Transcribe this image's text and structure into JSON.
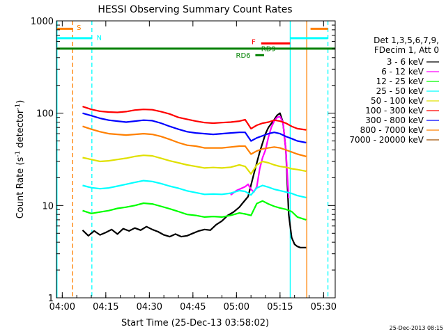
{
  "chart_data": {
    "type": "line",
    "title": "HESSI Observing Summary Count Rates",
    "xlabel": "Start Time (25-Dec-13 03:58:02)",
    "ylabel_main": "Count Rate (s",
    "ylabel_exp1": "-1",
    "ylabel_mid": " detector",
    "ylabel_exp2": "-1",
    "ylabel_end": ")",
    "x_unit": "minutes after 03:58:02",
    "xlim": [
      0,
      96
    ],
    "ylim": [
      1,
      1000
    ],
    "yscale": "log",
    "x_ticks": [
      {
        "label": "04:00",
        "x": 2
      },
      {
        "label": "04:15",
        "x": 17
      },
      {
        "label": "04:30",
        "x": 32
      },
      {
        "label": "04:45",
        "x": 47
      },
      {
        "label": "05:00",
        "x": 62
      },
      {
        "label": "05:15",
        "x": 77
      },
      {
        "label": "05:30",
        "x": 92
      }
    ],
    "y_ticks": [
      {
        "label": "1",
        "y": 1
      },
      {
        "label": "10",
        "y": 10
      },
      {
        "label": "100",
        "y": 100
      },
      {
        "label": "1000",
        "y": 1000
      }
    ],
    "legend_header": [
      "Det 1,3,5,6,7,9,",
      "FDecim 1, Att 0"
    ],
    "series": [
      {
        "name": "3 - 6 keV",
        "color": "#000000",
        "x": [
          9,
          11,
          13,
          15,
          17,
          19,
          21,
          23,
          25,
          27,
          29,
          31,
          33,
          35,
          37,
          39,
          41,
          43,
          45,
          47,
          49,
          51,
          53,
          55,
          57,
          59,
          61,
          63,
          64,
          66,
          68,
          70,
          72,
          73,
          75,
          76,
          77,
          78,
          79,
          80,
          81,
          82,
          83,
          84,
          86
        ],
        "y": [
          5.4,
          4.7,
          5.3,
          4.8,
          5.1,
          5.5,
          4.9,
          5.6,
          5.3,
          5.7,
          5.4,
          5.9,
          5.5,
          5.2,
          4.8,
          4.6,
          4.9,
          4.6,
          4.7,
          5.0,
          5.3,
          5.5,
          5.4,
          6.2,
          6.8,
          7.8,
          8.5,
          9.6,
          10.5,
          12.5,
          22,
          38,
          60,
          70,
          85,
          95,
          100,
          80,
          40,
          8,
          4.5,
          3.8,
          3.6,
          3.5,
          3.5
        ]
      },
      {
        "name": "6 - 12 keV",
        "color": "#ff00ff",
        "x": [
          60,
          62,
          64,
          65,
          66,
          67,
          68,
          69,
          70,
          71,
          72,
          73,
          74,
          75,
          76,
          77,
          78,
          79,
          80
        ],
        "y": [
          13,
          14.5,
          15.5,
          16,
          17,
          15,
          14,
          16,
          25,
          33,
          40,
          55,
          70,
          82,
          90,
          92,
          80,
          40,
          12
        ]
      },
      {
        "name": "12 - 25 keV",
        "color": "#00ff00",
        "x": [
          9,
          12,
          15,
          18,
          21,
          24,
          27,
          30,
          33,
          36,
          39,
          42,
          45,
          48,
          51,
          54,
          57,
          60,
          63,
          65,
          67,
          69,
          71,
          73,
          75,
          77,
          79,
          81,
          83,
          86
        ],
        "y": [
          8.8,
          8.2,
          8.5,
          8.8,
          9.3,
          9.6,
          10.0,
          10.6,
          10.4,
          9.8,
          9.2,
          8.6,
          8.0,
          7.8,
          7.5,
          7.6,
          7.5,
          7.8,
          8.3,
          8.1,
          7.8,
          10.5,
          11.2,
          10.4,
          9.8,
          9.4,
          9.1,
          8.6,
          7.5,
          7.0
        ]
      },
      {
        "name": "25 - 50 keV",
        "color": "#00ffff",
        "x": [
          9,
          12,
          15,
          18,
          21,
          24,
          27,
          30,
          33,
          36,
          39,
          42,
          45,
          48,
          51,
          54,
          57,
          60,
          63,
          65,
          67,
          69,
          71,
          73,
          75,
          77,
          79,
          81,
          83,
          86
        ],
        "y": [
          16.5,
          15.6,
          15.2,
          15.5,
          16.2,
          17.0,
          17.8,
          18.6,
          18.2,
          17.3,
          16.2,
          15.4,
          14.4,
          13.8,
          13.2,
          13.3,
          13.2,
          13.6,
          14.5,
          14.2,
          13.0,
          15.5,
          16.5,
          15.8,
          15.0,
          14.5,
          14.0,
          13.5,
          12.8,
          12.2
        ]
      },
      {
        "name": "50 - 100 keV",
        "color": "#e0e000",
        "x": [
          9,
          12,
          15,
          18,
          21,
          24,
          27,
          30,
          33,
          36,
          39,
          42,
          45,
          48,
          51,
          54,
          57,
          60,
          63,
          65,
          67,
          69,
          71,
          73,
          75,
          77,
          79,
          81,
          83,
          86
        ],
        "y": [
          33,
          31.5,
          30,
          30.5,
          31.5,
          32.5,
          34,
          35,
          34.5,
          32.5,
          30.5,
          29,
          27.5,
          26.5,
          25.5,
          25.8,
          25.5,
          26,
          27.5,
          26.5,
          22,
          27.5,
          30,
          29,
          27.5,
          26.5,
          26,
          25,
          24.5,
          23.5
        ]
      },
      {
        "name": "100 - 300 keV",
        "color": "#ff0000",
        "x": [
          9,
          12,
          15,
          18,
          21,
          24,
          27,
          30,
          33,
          36,
          39,
          42,
          45,
          48,
          51,
          54,
          57,
          60,
          63,
          65,
          67,
          69,
          71,
          73,
          75,
          77,
          79,
          81,
          83,
          86
        ],
        "y": [
          118,
          110,
          105,
          103,
          102,
          104,
          108,
          110,
          109,
          104,
          98,
          90,
          86,
          82,
          79,
          78,
          79,
          80,
          82,
          85,
          68,
          74,
          78,
          80,
          84,
          82,
          78,
          72,
          68,
          66
        ]
      },
      {
        "name": "300 - 800 keV",
        "color": "#0000ff",
        "x": [
          9,
          12,
          15,
          18,
          21,
          24,
          27,
          30,
          33,
          36,
          39,
          42,
          45,
          48,
          51,
          54,
          57,
          60,
          63,
          65,
          67,
          69,
          71,
          73,
          75,
          77,
          79,
          81,
          83,
          86
        ],
        "y": [
          100,
          94,
          88,
          84,
          82,
          80,
          82,
          84,
          83,
          78,
          72,
          67,
          63,
          61,
          60,
          59,
          60,
          61,
          62,
          62,
          50,
          54,
          57,
          60,
          62,
          60,
          56,
          53,
          50,
          48
        ]
      },
      {
        "name": "800 - 7000 keV",
        "color": "#ff8000",
        "x": [
          9,
          12,
          15,
          18,
          21,
          24,
          27,
          30,
          33,
          36,
          39,
          42,
          45,
          48,
          51,
          54,
          57,
          60,
          63,
          65,
          67,
          69,
          71,
          73,
          75,
          77,
          79,
          81,
          83,
          86
        ],
        "y": [
          72,
          67,
          63,
          60,
          59,
          58,
          59,
          60,
          59,
          56,
          52,
          48,
          45,
          44,
          42,
          42,
          42,
          43,
          44,
          44,
          36,
          39,
          41,
          42,
          43,
          42,
          40,
          38,
          36,
          34
        ]
      },
      {
        "name": "7000 - 20000 keV",
        "color": "#a05000",
        "x": [],
        "y": []
      }
    ],
    "markers": {
      "vlines": [
        {
          "x": 0.2,
          "color": "#00ffff",
          "style": "solid"
        },
        {
          "x": 5.6,
          "color": "#ff8000",
          "style": "dashed"
        },
        {
          "x": 12.2,
          "color": "#00ffff",
          "style": "dashed"
        },
        {
          "x": 80.5,
          "color": "#00ffff",
          "style": "solid"
        },
        {
          "x": 86.2,
          "color": "#ff8000",
          "style": "solid"
        },
        {
          "x": 93.5,
          "color": "#00ffff",
          "style": "dashed"
        }
      ],
      "hbars": [
        {
          "x0": 0.2,
          "x1": 5.6,
          "y": 820,
          "color": "#ff8000"
        },
        {
          "x0": 87.5,
          "x1": 93.5,
          "y": 820,
          "color": "#ff8000"
        },
        {
          "x0": 0.2,
          "x1": 12.2,
          "y": 650,
          "color": "#00ffff"
        },
        {
          "x0": 80.5,
          "x1": 93.5,
          "y": 650,
          "color": "#00ffff"
        },
        {
          "x0": 0.2,
          "x1": 96,
          "y": 500,
          "color": "#008000"
        },
        {
          "x0": 70.5,
          "x1": 80.5,
          "y": 570,
          "color": "#ff0000"
        },
        {
          "x0": 68.5,
          "x1": 71.5,
          "y": 425,
          "color": "#008000"
        }
      ],
      "labels": [
        {
          "text": "S",
          "x": 7,
          "y": 800,
          "color": "#ff8000"
        },
        {
          "text": "N",
          "x": 13.8,
          "y": 620,
          "color": "#00ffff"
        },
        {
          "text": "F",
          "x": 67.2,
          "y": 560,
          "color": "#ff0000"
        },
        {
          "text": "RD9",
          "x": 70.5,
          "y": 470,
          "color": "#008000"
        },
        {
          "text": "RD6",
          "x": 61.8,
          "y": 400,
          "color": "#008000"
        }
      ]
    }
  },
  "timestamp": "25-Dec-2013 08:15"
}
